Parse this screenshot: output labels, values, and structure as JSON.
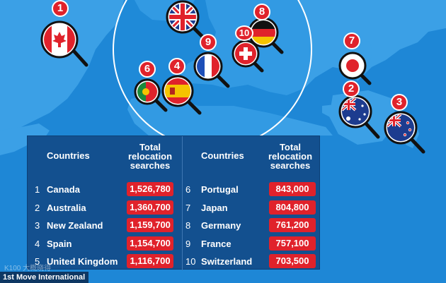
{
  "infographic": {
    "headers": {
      "countries": "Countries",
      "searches_line1": "Total",
      "searches_line2": "relocation",
      "searches_line3": "searches"
    },
    "rows_left": [
      {
        "rank": "1",
        "country": "Canada",
        "searches": "1,526,780"
      },
      {
        "rank": "2",
        "country": "Australia",
        "searches": "1,360,700"
      },
      {
        "rank": "3",
        "country": "New Zealand",
        "searches": "1,159,700"
      },
      {
        "rank": "4",
        "country": "Spain",
        "searches": "1,154,700"
      },
      {
        "rank": "5",
        "country": "United Kingdom",
        "searches": "1,116,700"
      }
    ],
    "rows_right": [
      {
        "rank": "6",
        "country": "Portugal",
        "searches": "843,000"
      },
      {
        "rank": "7",
        "country": "Japan",
        "searches": "804,800"
      },
      {
        "rank": "8",
        "country": "Germany",
        "searches": "761,200"
      },
      {
        "rank": "9",
        "country": "France",
        "searches": "757,100"
      },
      {
        "rank": "10",
        "country": "Switzerland",
        "searches": "703,500"
      }
    ],
    "map_badges": [
      {
        "rank": "1",
        "flag": "canada-flag"
      },
      {
        "rank": "2",
        "flag": "australia-flag"
      },
      {
        "rank": "3",
        "flag": "new-zealand-flag"
      },
      {
        "rank": "4",
        "flag": "spain-flag"
      },
      {
        "rank": "6",
        "flag": "portugal-flag"
      },
      {
        "rank": "7",
        "flag": "japan-flag"
      },
      {
        "rank": "8",
        "flag": "germany-flag"
      },
      {
        "rank": "9",
        "flag": "france-flag"
      },
      {
        "rank": "10",
        "flag": "switzerland-flag"
      }
    ],
    "credit": "1st Move International",
    "watermark": "K100 大概晓得",
    "colors": {
      "ocean": "#1e87d6",
      "land": "#3ba0e6",
      "table_bg": "#13508f",
      "accent_red": "#e0222b"
    }
  }
}
